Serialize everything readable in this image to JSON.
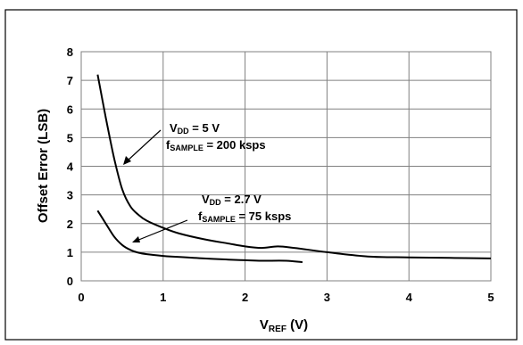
{
  "chart_data": {
    "type": "line",
    "xlabel": {
      "main": "V",
      "sub": "REF",
      "unit": " (V)"
    },
    "ylabel": "Offset Error (LSB)",
    "xlim": [
      0,
      5
    ],
    "ylim": [
      0,
      8
    ],
    "xticks": [
      "0",
      "1",
      "2",
      "3",
      "4",
      "5"
    ],
    "yticks": [
      "0",
      "1",
      "2",
      "3",
      "4",
      "5",
      "6",
      "7",
      "8"
    ],
    "grid": true,
    "series": [
      {
        "x": [
          0.2,
          0.3,
          0.4,
          0.5,
          0.6,
          0.7,
          0.8,
          1.0,
          1.2,
          1.5,
          1.8,
          2.0,
          2.2,
          2.4,
          2.6,
          3.0,
          3.5,
          4.0,
          4.5,
          5.0
        ],
        "y": [
          7.2,
          5.7,
          4.3,
          3.2,
          2.6,
          2.3,
          2.1,
          1.85,
          1.65,
          1.45,
          1.3,
          1.2,
          1.15,
          1.2,
          1.15,
          1.0,
          0.85,
          0.82,
          0.8,
          0.78
        ]
      },
      {
        "x": [
          0.2,
          0.3,
          0.4,
          0.5,
          0.6,
          0.7,
          0.8,
          1.0,
          1.2,
          1.5,
          1.8,
          2.0,
          2.2,
          2.5,
          2.7
        ],
        "y": [
          2.45,
          2.0,
          1.55,
          1.25,
          1.08,
          0.98,
          0.93,
          0.87,
          0.83,
          0.78,
          0.74,
          0.72,
          0.7,
          0.7,
          0.65
        ]
      }
    ],
    "annotations": [
      {
        "line1": {
          "main": "V",
          "sub": "DD",
          "rest": " = 5 V"
        },
        "line2": {
          "main": "f",
          "sub": "SAMPLE",
          "rest": " = 200 ksps"
        }
      },
      {
        "line1": {
          "main": "V",
          "sub": "DD",
          "rest": " = 2.7 V"
        },
        "line2": {
          "main": "f",
          "sub": "SAMPLE",
          "rest": " = 75 ksps"
        }
      }
    ]
  }
}
